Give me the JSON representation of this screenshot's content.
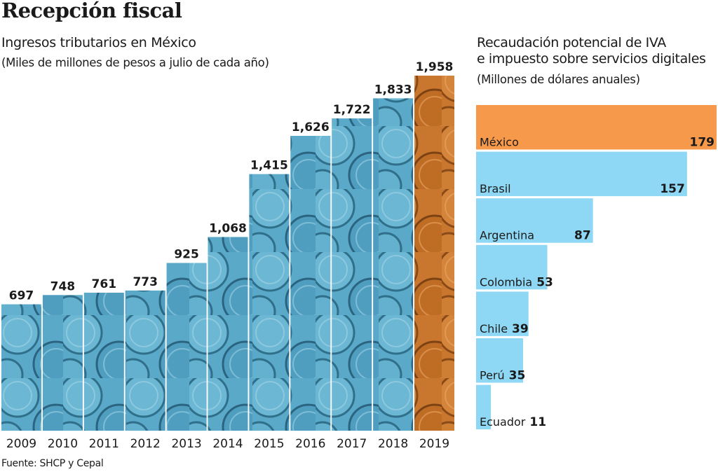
{
  "header": {
    "title": "Recepción fiscal"
  },
  "left_chart": {
    "subtitle": "Ingresos tributarios en México",
    "unit": "(Miles de millones de pesos a julio de cada año)"
  },
  "right_chart": {
    "title_line1": "Recaudación potencial de IVA",
    "title_line2": "e impuesto sobre servicios digitales",
    "unit": "(Millones de dólares anuales)"
  },
  "footer": {
    "source": "Fuente: SHCP y Cepal"
  },
  "colors": {
    "blue_bar": "#5aa9c9",
    "blue_bar_dark": "#2f6f8a",
    "orange_bar": "#c9772e",
    "orange_bar_dark": "#8a4a18",
    "h_blue": "#8fd8f5",
    "h_orange": "#f7994a"
  },
  "chart_data": [
    {
      "type": "bar",
      "title": "Ingresos tributarios en México",
      "subtitle": "(Miles de millones de pesos a julio de cada año)",
      "xlabel": "",
      "ylabel": "",
      "categories": [
        "2009",
        "2010",
        "2011",
        "2012",
        "2013",
        "2014",
        "2015",
        "2016",
        "2017",
        "2018",
        "2019"
      ],
      "values": [
        697,
        748,
        761,
        773,
        925,
        1068,
        1415,
        1626,
        1722,
        1833,
        1958
      ],
      "value_labels": [
        "697",
        "748",
        "761",
        "773",
        "925",
        "1,068",
        "1,415",
        "1,626",
        "1,722",
        "1,833",
        "1,958"
      ],
      "highlight": "2019",
      "ylim": [
        0,
        1958
      ],
      "grid": false,
      "legend": "none"
    },
    {
      "type": "bar",
      "orientation": "horizontal",
      "title": "Recaudación potencial de IVA e impuesto sobre servicios digitales",
      "subtitle": "(Millones de dólares anuales)",
      "categories": [
        "México",
        "Brasil",
        "Argentina",
        "Colombia",
        "Chile",
        "Perú",
        "Ecuador"
      ],
      "values": [
        179,
        157,
        87,
        53,
        39,
        35,
        11
      ],
      "highlight": "México",
      "xlim": [
        0,
        179
      ],
      "grid": false,
      "legend": "none"
    }
  ]
}
